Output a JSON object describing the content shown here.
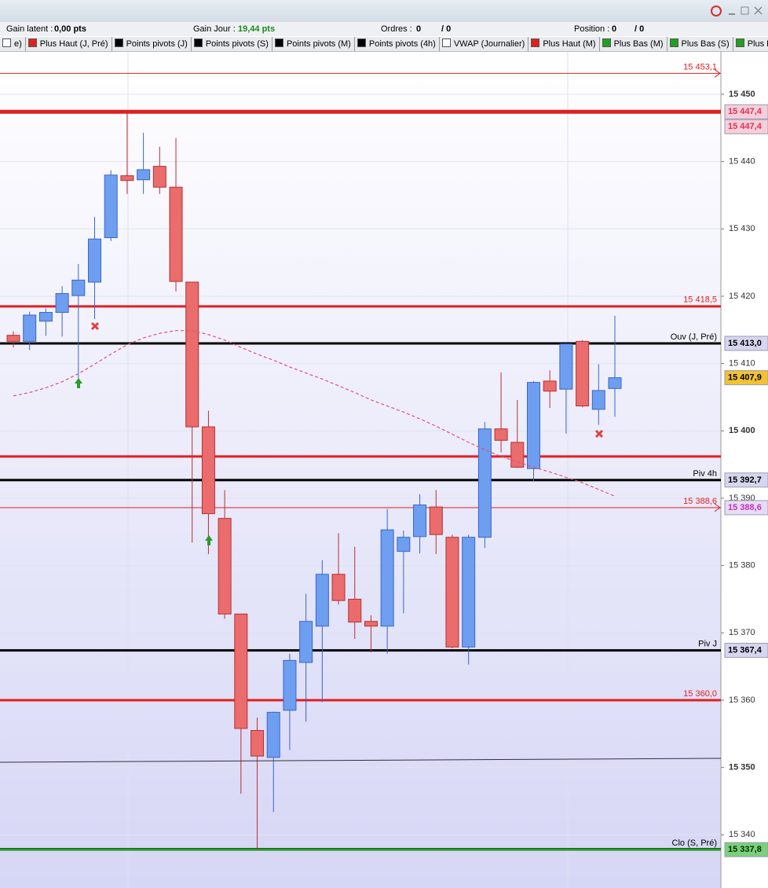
{
  "toolbar": {
    "gain_latent_label": "Gain latent :",
    "gain_latent": "0,00 pts",
    "gain_jour_label": "Gain Jour :",
    "gain_jour": "19,44 pts",
    "ordres_label": "Ordres :",
    "ordres": "0",
    "ordres_total": "/ 0",
    "position_label": "Position :",
    "position": "0",
    "position_total": "/ 0"
  },
  "legend_bar": [
    {
      "label": "e)",
      "color": "#ffffff"
    },
    {
      "label": "Plus Haut (J, Pré)",
      "color": "#e02020"
    },
    {
      "label": "Points pivots (J)",
      "color": "#000000"
    },
    {
      "label": "Points pivots (S)",
      "color": "#000000"
    },
    {
      "label": "Points pivots (M)",
      "color": "#000000"
    },
    {
      "label": "Points pivots (4h)",
      "color": "#000000"
    },
    {
      "label": "VWAP (Journalier)",
      "color": "#ffffff"
    },
    {
      "label": "Plus Haut (M)",
      "color": "#e02020"
    },
    {
      "label": "Plus Bas (M)",
      "color": "#20a020"
    },
    {
      "label": "Plus Bas (S)",
      "color": "#20a020"
    },
    {
      "label": "Plus Ba",
      "color": "#20a020"
    }
  ],
  "chart_data": {
    "type": "candlestick",
    "up_color": "#6e9ef0",
    "up_border": "#3a66c8",
    "down_color": "#ea6c6c",
    "down_border": "#b83030",
    "open": [
      15414.2,
      15413.3,
      15416.3,
      15417.6,
      15420.1,
      15422.1,
      15428.7,
      15437.9,
      15437.3,
      15439.3,
      15436.2,
      15422.1,
      15400.6,
      15387.0,
      15372.8,
      15355.5,
      15351.5,
      15358.5,
      15365.6,
      15371.0,
      15378.7,
      15375.0,
      15371.7,
      15371.0,
      15382.1,
      15384.3,
      15388.7,
      15384.2,
      15367.9,
      15384.2,
      15400.3,
      15398.3,
      15394.4,
      15407.4,
      15406.2,
      15413.3,
      15403.2,
      15406.3
    ],
    "high": [
      15414.8,
      15417.7,
      15418.2,
      15421.5,
      15424.8,
      15431.8,
      15438.7,
      15447.4,
      15444.3,
      15442.2,
      15443.5,
      15422.1,
      15403.0,
      15391.2,
      15372.8,
      15357.4,
      15358.3,
      15366.9,
      15375.8,
      15380.8,
      15384.8,
      15382.8,
      15372.6,
      15388.4,
      15385.2,
      15390.6,
      15391.2,
      15384.6,
      15384.6,
      15401.3,
      15408.7,
      15404.6,
      15407.4,
      15409.0,
      15413.0,
      15413.5,
      15409.9,
      15417.1
    ],
    "low": [
      15412.4,
      15412.0,
      15414.1,
      15414.0,
      15407.8,
      15416.6,
      15428.2,
      15435.2,
      15435.2,
      15435.2,
      15420.7,
      15383.4,
      15381.7,
      15372.1,
      15346.1,
      15337.8,
      15343.4,
      15352.6,
      15356.8,
      15359.7,
      15374.2,
      15369.1,
      15367.1,
      15366.9,
      15372.9,
      15381.8,
      15381.7,
      15367.7,
      15365.3,
      15382.6,
      15396.8,
      15394.5,
      15392.5,
      15403.4,
      15399.6,
      15403.5,
      15400.9,
      15402.1
    ],
    "close": [
      15413.3,
      15417.2,
      15417.6,
      15420.4,
      15422.4,
      15428.5,
      15438.0,
      15437.2,
      15438.8,
      15436.2,
      15422.2,
      15400.6,
      15387.7,
      15372.8,
      15355.8,
      15351.7,
      15358.2,
      15365.9,
      15371.7,
      15378.7,
      15374.8,
      15371.6,
      15371.0,
      15385.3,
      15384.2,
      15389.0,
      15384.6,
      15367.9,
      15384.2,
      15400.3,
      15398.6,
      15394.6,
      15407.2,
      15405.9,
      15412.9,
      15403.7,
      15406.0,
      15407.9
    ],
    "vwap": {
      "color": "#e0507a",
      "values": [
        15405.2,
        15405.7,
        15406.4,
        15407.3,
        15408.5,
        15409.9,
        15411.4,
        15412.8,
        15413.8,
        15414.5,
        15414.9,
        15414.9,
        15414.3,
        15413.5,
        15412.4,
        15411.4,
        15410.5,
        15409.5,
        15408.6,
        15407.7,
        15406.7,
        15405.7,
        15404.6,
        15403.7,
        15402.8,
        15401.8,
        15400.7,
        15399.5,
        15398.3,
        15397.2,
        15396.2,
        15395.4,
        15394.6,
        15393.9,
        15393.1,
        15392.3,
        15391.3,
        15390.3
      ]
    },
    "ylim": [
      15332.1,
      15456.3
    ],
    "yticks": [
      {
        "value": 15340,
        "label": "15 340"
      },
      {
        "value": 15350,
        "label": "15 350"
      },
      {
        "value": 15360,
        "label": "15 360"
      },
      {
        "value": 15370,
        "label": "15 370"
      },
      {
        "value": 15380,
        "label": "15 380"
      },
      {
        "value": 15390,
        "label": "15 390"
      },
      {
        "value": 15400,
        "label": "15 400"
      },
      {
        "value": 15410,
        "label": "15 410"
      },
      {
        "value": 15420,
        "label": "15 420"
      },
      {
        "value": 15430,
        "label": "15 430"
      },
      {
        "value": 15440,
        "label": "15 440"
      },
      {
        "value": 15450,
        "label": "15 450"
      }
    ],
    "grid": true,
    "levels": [
      {
        "value": 15453.1,
        "color": "#e02020",
        "width": 1,
        "label": "15 453,1"
      },
      {
        "value": 15447.4,
        "color": "#e02020",
        "width": 5
      },
      {
        "value": 15418.5,
        "color": "#e02020",
        "width": 3,
        "label": "15 418,5"
      },
      {
        "value": 15413.0,
        "color": "#000000",
        "width": 3,
        "label": "Ouv (J, Pré)"
      },
      {
        "value": 15396.2,
        "color": "#e02020",
        "width": 3
      },
      {
        "value": 15392.7,
        "color": "#000000",
        "width": 3,
        "label": "Piv 4h"
      },
      {
        "value": 15388.6,
        "color": "#e02020",
        "width": 1,
        "label": "15 388,6"
      },
      {
        "value": 15367.4,
        "color": "#000000",
        "width": 3,
        "label": "Piv J"
      },
      {
        "value": 15360.0,
        "color": "#e02020",
        "width": 3,
        "label": "15 360,0"
      },
      {
        "value": 15337.8,
        "color": "#20a020",
        "width": 3,
        "label": "Clo (S, Pré)"
      }
    ],
    "price_labels": [
      {
        "value": 15447.4,
        "label": "15 447,4",
        "bg": "#f6cfd8",
        "color": "#e0305a"
      },
      {
        "value": 15447.4,
        "label": "15 447,4",
        "bg": "#f6cfd8",
        "color": "#e0305a"
      },
      {
        "value": 15413.0,
        "label": "15 413,0",
        "bg": "#d6d6ee",
        "color": "#000000"
      },
      {
        "value": 15407.9,
        "label": "15 407,9",
        "bg": "#f2c230",
        "color": "#000000"
      },
      {
        "value": 15392.7,
        "label": "15 392,7",
        "bg": "#d6d6ee",
        "color": "#000000"
      },
      {
        "value": 15388.6,
        "label": "15 388,6",
        "bg": "#e6dcf4",
        "color": "#c030c0"
      },
      {
        "value": 15367.4,
        "label": "15 367,4",
        "bg": "#d6d6ee",
        "color": "#000000"
      },
      {
        "value": 15337.8,
        "label": "15 337,8",
        "bg": "#7ccf7c",
        "color": "#003300"
      }
    ]
  }
}
